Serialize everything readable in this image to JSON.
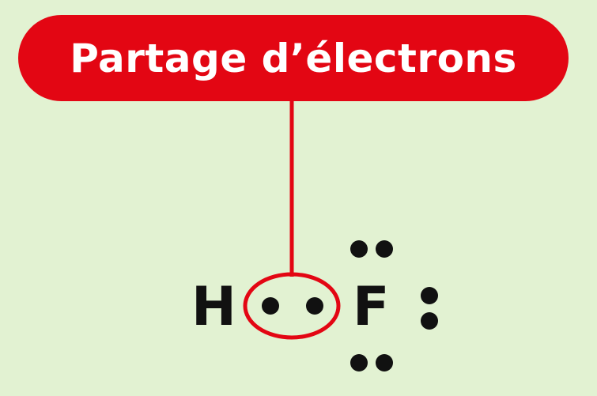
{
  "label": {
    "text": "Partage d’électrons"
  },
  "molecule": {
    "atom_1": "H",
    "atom_2": "F",
    "shared_pair_electrons": 2,
    "lone_pairs_on_f": 3
  },
  "colors": {
    "background": "#e2f2d2",
    "accent": "#e30613",
    "label_text": "#ffffff",
    "symbols": "#111111"
  }
}
